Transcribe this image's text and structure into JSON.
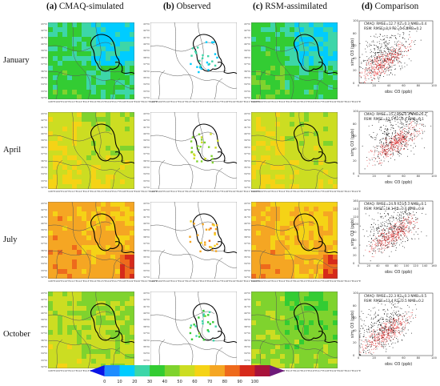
{
  "headers": [
    {
      "letter": "(a)",
      "text": " CMAQ-simulated"
    },
    {
      "letter": "(b)",
      "text": " Observed"
    },
    {
      "letter": "(c)",
      "text": " RSM-assimilated"
    },
    {
      "letter": "(d)",
      "text": " Comparison"
    }
  ],
  "rows": [
    {
      "label": "January",
      "cmaq_level": 30,
      "rsm_level": 32,
      "obs_level": 20,
      "stats": [
        "CMAQ: RMSE=12.7 R2=0.3 NMB=0.4",
        "RSM: RMSE=8.9 R2=0.6 NMB=0.2"
      ],
      "xlabel": "obs: O3 (ppb)",
      "ylabel": "sim: O3 (ppb)",
      "xticks": [
        "0",
        "20",
        "40",
        "60",
        "80",
        "100"
      ],
      "yticks": [
        "0",
        "20",
        "40",
        "60",
        "80",
        "100"
      ]
    },
    {
      "label": "April",
      "cmaq_level": 55,
      "rsm_level": 55,
      "obs_level": 50,
      "stats": [
        "CMAQ: RMSE=15.7 R2=0.3 NMB=0.2",
        "RSM: RMSE=12.5 R2=0.4 NMB=0.1"
      ],
      "xlabel": "obs: O3 (ppb)",
      "ylabel": "sim: O3 (ppb)",
      "xticks": [
        "0",
        "20",
        "40",
        "60",
        "80",
        "100"
      ],
      "yticks": [
        "0",
        "20",
        "40",
        "60",
        "80",
        "100"
      ]
    },
    {
      "label": "July",
      "cmaq_level": 72,
      "rsm_level": 70,
      "obs_level": 72,
      "stats": [
        "CMAQ: RMSE=24.4 R2=0.3 NMB=0.1",
        "RSM: RMSE=18.1 R2=0.6 NMB=0.0"
      ],
      "xlabel": "obs: O3 (ppb)",
      "ylabel": "sim: O3 (ppb)",
      "xticks": [
        "0",
        "20",
        "40",
        "60",
        "80",
        "100",
        "120",
        "140",
        "160"
      ],
      "yticks": [
        "0",
        "20",
        "40",
        "60",
        "80",
        "100",
        "120",
        "140",
        "160"
      ]
    },
    {
      "label": "October",
      "cmaq_level": 50,
      "rsm_level": 44,
      "obs_level": 32,
      "stats": [
        "CMAQ: RMSE=22.3 R2=0.3 NMB=0.5",
        "RSM: RMSE=13.4 R2=0.5 NMB=0.2"
      ],
      "xlabel": "obs: O3 (ppb)",
      "ylabel": "sim: O3 (ppb)",
      "xticks": [
        "0",
        "20",
        "40",
        "60",
        "80",
        "100"
      ],
      "yticks": [
        "0",
        "20",
        "40",
        "60",
        "80",
        "100"
      ]
    }
  ],
  "map_lon_ticks": [
    "108°E",
    "109°E",
    "110°E",
    "111°E",
    "112°E",
    "113°E",
    "114°E",
    "115°E",
    "116°E",
    "117°E",
    "118°E",
    "119°E",
    "120°E",
    "121°E",
    "122°E"
  ],
  "map_lat_ticks": [
    "43°N",
    "42°N",
    "41°N",
    "40°N",
    "39°N",
    "38°N",
    "37°N",
    "36°N",
    "35°N",
    "34°N",
    "33°N",
    "32°N"
  ],
  "colorbar": {
    "ticks": [
      "0",
      "10",
      "20",
      "30",
      "40",
      "50",
      "60",
      "70",
      "80",
      "90",
      "100"
    ],
    "colors": [
      "#0a14e6",
      "#1e8cff",
      "#00ccff",
      "#3dd6a8",
      "#33cc33",
      "#7fd32e",
      "#ccdd22",
      "#f5d316",
      "#f5a623",
      "#ee6a1c",
      "#d62a1a",
      "#a8123a",
      "#6e1a7a"
    ]
  },
  "scatter_colors": {
    "cmaq": "#000000",
    "rsm": "#e01818"
  }
}
